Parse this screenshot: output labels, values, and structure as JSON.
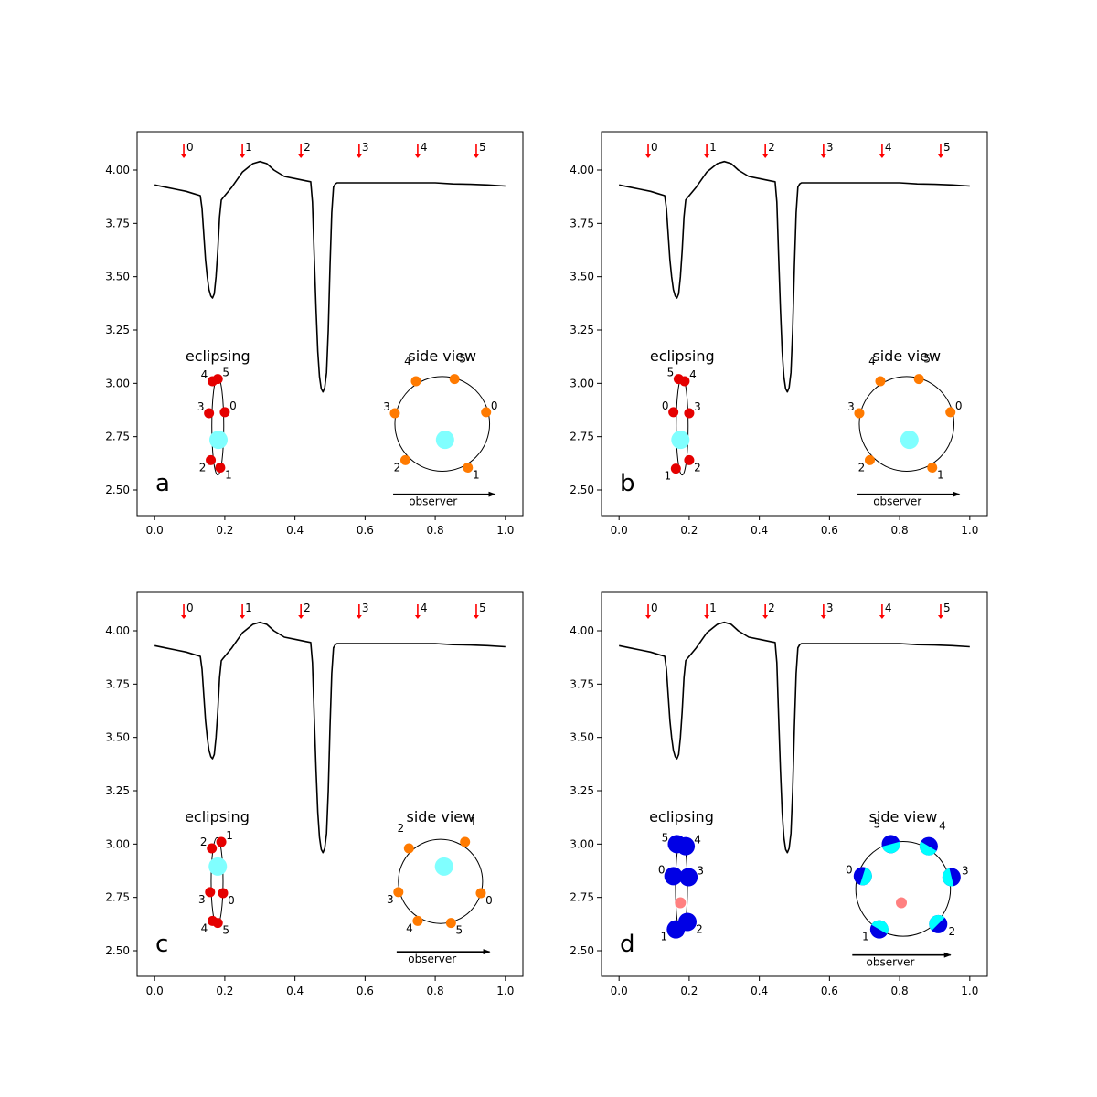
{
  "chart_data": {
    "type": "line",
    "shared": {
      "xlim": [
        -0.05,
        1.05
      ],
      "ylim": [
        2.38,
        4.18
      ],
      "xticks": [
        0.0,
        0.2,
        0.4,
        0.6,
        0.8,
        1.0
      ],
      "xtick_labels": [
        "0.0",
        "0.2",
        "0.4",
        "0.6",
        "0.8",
        "1.0"
      ],
      "yticks": [
        2.5,
        2.75,
        3.0,
        3.25,
        3.5,
        3.75,
        4.0
      ],
      "ytick_labels": [
        "2.50",
        "2.75",
        "3.00",
        "3.25",
        "3.50",
        "3.75",
        "4.00"
      ],
      "light_curve": {
        "x": [
          0.0,
          0.03,
          0.06,
          0.09,
          0.11,
          0.13,
          0.135,
          0.14,
          0.145,
          0.15,
          0.155,
          0.16,
          0.165,
          0.17,
          0.175,
          0.18,
          0.185,
          0.19,
          0.195,
          0.2,
          0.22,
          0.25,
          0.28,
          0.3,
          0.32,
          0.34,
          0.37,
          0.4,
          0.43,
          0.445,
          0.45,
          0.455,
          0.46,
          0.465,
          0.47,
          0.475,
          0.48,
          0.485,
          0.49,
          0.495,
          0.5,
          0.505,
          0.51,
          0.515,
          0.52,
          0.55,
          0.6,
          0.65,
          0.7,
          0.75,
          0.8,
          0.85,
          0.9,
          0.95,
          1.0
        ],
        "y": [
          3.93,
          3.92,
          3.91,
          3.9,
          3.89,
          3.88,
          3.82,
          3.7,
          3.58,
          3.5,
          3.44,
          3.41,
          3.4,
          3.42,
          3.5,
          3.62,
          3.78,
          3.86,
          3.87,
          3.88,
          3.92,
          3.99,
          4.03,
          4.04,
          4.03,
          4.0,
          3.97,
          3.96,
          3.95,
          3.945,
          3.85,
          3.6,
          3.35,
          3.15,
          3.03,
          2.975,
          2.96,
          2.98,
          3.05,
          3.25,
          3.55,
          3.8,
          3.92,
          3.935,
          3.94,
          3.94,
          3.94,
          3.94,
          3.94,
          3.94,
          3.94,
          3.935,
          3.933,
          3.93,
          3.925
        ]
      },
      "phase_markers": {
        "x": [
          0.083,
          0.25,
          0.417,
          0.583,
          0.75,
          0.917
        ],
        "labels": [
          "0",
          "1",
          "2",
          "3",
          "4",
          "5"
        ],
        "color": "#ff0000"
      },
      "eclipsing_title": "eclipsing",
      "side_view_title": "side view",
      "observer_label": "observer",
      "ring_color": "#000000"
    },
    "panels": [
      {
        "letter": "a",
        "eclipsing": {
          "ellipse": {
            "cx": 0.18,
            "cy": 2.8,
            "rx": 0.017,
            "ry": 0.23
          },
          "star": {
            "x": 0.182,
            "y": 2.735,
            "color": "#80ffff"
          },
          "points": [
            {
              "label": "0",
              "x": 0.2,
              "y": 2.865,
              "color": "#e50000"
            },
            {
              "label": "1",
              "x": 0.187,
              "y": 2.605,
              "color": "#e50000"
            },
            {
              "label": "2",
              "x": 0.16,
              "y": 2.64,
              "color": "#e50000"
            },
            {
              "label": "3",
              "x": 0.155,
              "y": 2.86,
              "color": "#e50000"
            },
            {
              "label": "4",
              "x": 0.165,
              "y": 3.01,
              "color": "#e50000"
            },
            {
              "label": "5",
              "x": 0.18,
              "y": 3.02,
              "color": "#e50000"
            }
          ]
        },
        "side_view": {
          "circle": {
            "cx": 0.82,
            "cy": 2.81,
            "r": 0.135
          },
          "star": {
            "x": 0.828,
            "y": 2.735,
            "color": "#80ffff"
          },
          "points": [
            {
              "label": "0",
              "x": 0.945,
              "y": 2.865,
              "color": "#ff7a00"
            },
            {
              "label": "1",
              "x": 0.893,
              "y": 2.605,
              "color": "#ff7a00"
            },
            {
              "label": "2",
              "x": 0.715,
              "y": 2.64,
              "color": "#ff7a00"
            },
            {
              "label": "3",
              "x": 0.685,
              "y": 2.86,
              "color": "#ff7a00"
            },
            {
              "label": "4",
              "x": 0.745,
              "y": 3.01,
              "color": "#ff7a00"
            },
            {
              "label": "5",
              "x": 0.855,
              "y": 3.02,
              "color": "#ff7a00"
            }
          ],
          "observer_arrow": {
            "x1": 0.68,
            "x2": 0.97,
            "y": 2.48
          }
        }
      },
      {
        "letter": "b",
        "eclipsing": {
          "ellipse": {
            "cx": 0.18,
            "cy": 2.8,
            "rx": 0.017,
            "ry": 0.23
          },
          "star": {
            "x": 0.175,
            "y": 2.735,
            "color": "#80ffff"
          },
          "points": [
            {
              "label": "0",
              "x": 0.155,
              "y": 2.865,
              "color": "#e50000"
            },
            {
              "label": "1",
              "x": 0.162,
              "y": 2.6,
              "color": "#e50000"
            },
            {
              "label": "2",
              "x": 0.2,
              "y": 2.64,
              "color": "#e50000"
            },
            {
              "label": "3",
              "x": 0.2,
              "y": 2.86,
              "color": "#e50000"
            },
            {
              "label": "4",
              "x": 0.187,
              "y": 3.01,
              "color": "#e50000"
            },
            {
              "label": "5",
              "x": 0.17,
              "y": 3.02,
              "color": "#e50000"
            }
          ]
        },
        "side_view": {
          "circle": {
            "cx": 0.82,
            "cy": 2.81,
            "r": 0.135
          },
          "star": {
            "x": 0.828,
            "y": 2.735,
            "color": "#80ffff"
          },
          "points": [
            {
              "label": "0",
              "x": 0.945,
              "y": 2.865,
              "color": "#ff7a00"
            },
            {
              "label": "1",
              "x": 0.893,
              "y": 2.605,
              "color": "#ff7a00"
            },
            {
              "label": "2",
              "x": 0.715,
              "y": 2.64,
              "color": "#ff7a00"
            },
            {
              "label": "3",
              "x": 0.685,
              "y": 2.86,
              "color": "#ff7a00"
            },
            {
              "label": "4",
              "x": 0.745,
              "y": 3.01,
              "color": "#ff7a00"
            },
            {
              "label": "5",
              "x": 0.855,
              "y": 3.02,
              "color": "#ff7a00"
            }
          ],
          "observer_arrow": {
            "x1": 0.68,
            "x2": 0.97,
            "y": 2.48
          }
        }
      },
      {
        "letter": "c",
        "eclipsing": {
          "ellipse": {
            "cx": 0.178,
            "cy": 2.825,
            "rx": 0.017,
            "ry": 0.205
          },
          "star": {
            "x": 0.18,
            "y": 2.895,
            "color": "#80ffff"
          },
          "points": [
            {
              "label": "0",
              "x": 0.195,
              "y": 2.77,
              "color": "#e50000"
            },
            {
              "label": "1",
              "x": 0.19,
              "y": 3.01,
              "color": "#e50000"
            },
            {
              "label": "2",
              "x": 0.163,
              "y": 2.98,
              "color": "#e50000"
            },
            {
              "label": "3",
              "x": 0.158,
              "y": 2.775,
              "color": "#e50000"
            },
            {
              "label": "4",
              "x": 0.165,
              "y": 2.64,
              "color": "#e50000"
            },
            {
              "label": "5",
              "x": 0.18,
              "y": 2.63,
              "color": "#e50000"
            }
          ]
        },
        "side_view": {
          "circle": {
            "cx": 0.815,
            "cy": 2.825,
            "r": 0.12
          },
          "star": {
            "x": 0.825,
            "y": 2.895,
            "color": "#80ffff"
          },
          "points": [
            {
              "label": "0",
              "x": 0.93,
              "y": 2.77,
              "color": "#ff7a00"
            },
            {
              "label": "1",
              "x": 0.885,
              "y": 3.01,
              "color": "#ff7a00"
            },
            {
              "label": "2",
              "x": 0.725,
              "y": 2.98,
              "color": "#ff7a00"
            },
            {
              "label": "3",
              "x": 0.695,
              "y": 2.775,
              "color": "#ff7a00"
            },
            {
              "label": "4",
              "x": 0.75,
              "y": 2.64,
              "color": "#ff7a00"
            },
            {
              "label": "5",
              "x": 0.845,
              "y": 2.63,
              "color": "#ff7a00"
            }
          ],
          "observer_arrow": {
            "x1": 0.69,
            "x2": 0.955,
            "y": 2.495
          }
        }
      },
      {
        "letter": "d",
        "eclipsing": {
          "ellipse": {
            "cx": 0.178,
            "cy": 2.8,
            "rx": 0.017,
            "ry": 0.23
          },
          "star": {
            "x": 0.175,
            "y": 2.725,
            "color": "#ff8080"
          },
          "points": [
            {
              "label": "0",
              "x": 0.155,
              "y": 2.85,
              "color": "#0000e5"
            },
            {
              "label": "1",
              "x": 0.162,
              "y": 2.6,
              "color": "#0000e5"
            },
            {
              "label": "2",
              "x": 0.195,
              "y": 2.635,
              "color": "#0000e5"
            },
            {
              "label": "3",
              "x": 0.198,
              "y": 2.845,
              "color": "#0000e5"
            },
            {
              "label": "4",
              "x": 0.19,
              "y": 2.99,
              "color": "#0000e5"
            },
            {
              "label": "5",
              "x": 0.165,
              "y": 3.0,
              "color": "#0000e5"
            }
          ]
        },
        "side_view": {
          "circle": {
            "cx": 0.81,
            "cy": 2.79,
            "r": 0.135
          },
          "star": {
            "x": 0.805,
            "y": 2.725,
            "color": "#ff8080"
          },
          "points": [
            {
              "label": "0",
              "x": 0.695,
              "y": 2.85,
              "color": "#0000e5"
            },
            {
              "label": "1",
              "x": 0.742,
              "y": 2.6,
              "color": "#0000e5"
            },
            {
              "label": "2",
              "x": 0.91,
              "y": 2.625,
              "color": "#0000e5"
            },
            {
              "label": "3",
              "x": 0.948,
              "y": 2.845,
              "color": "#0000e5"
            },
            {
              "label": "4",
              "x": 0.883,
              "y": 2.99,
              "color": "#0000e5"
            },
            {
              "label": "5",
              "x": 0.775,
              "y": 3.0,
              "color": "#0000e5"
            }
          ],
          "cyan_fill": "#00ffff",
          "observer_arrow": {
            "x1": 0.665,
            "x2": 0.945,
            "y": 2.48
          }
        }
      }
    ]
  }
}
